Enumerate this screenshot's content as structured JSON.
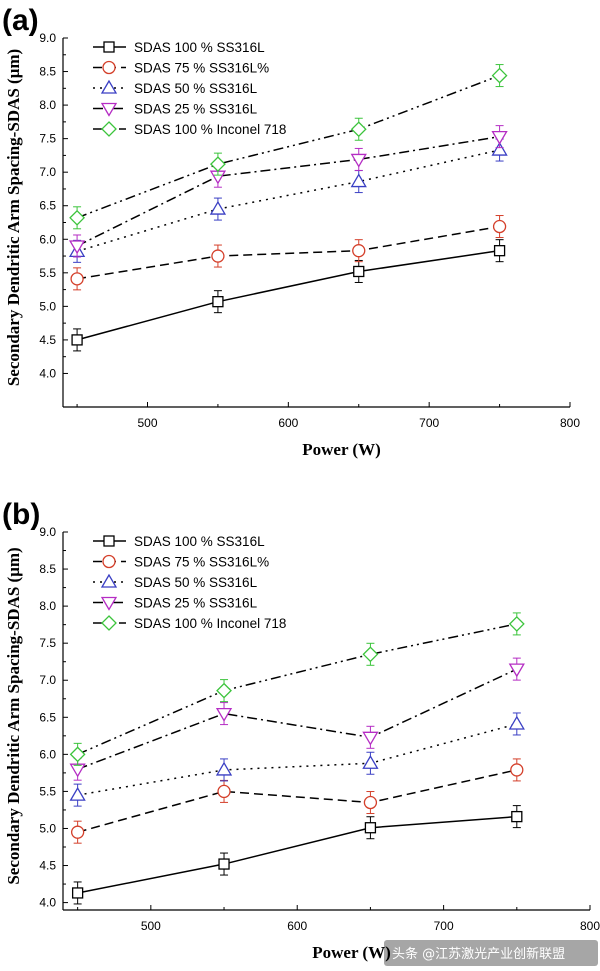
{
  "watermark": "头条 @江苏激光产业创新联盟",
  "chart_data": [
    {
      "panel_label": "(a)",
      "type": "line",
      "xlabel": "Power (W)",
      "ylabel": "Secondary Dendritic Arm Spacing-SDAS (μm)",
      "xlim": [
        440,
        800
      ],
      "ylim": [
        3.5,
        9.0
      ],
      "xticks": [
        500,
        600,
        700,
        800
      ],
      "yticks": [
        4.0,
        4.5,
        5.0,
        5.5,
        6.0,
        6.5,
        7.0,
        7.5,
        8.0,
        8.5,
        9.0
      ],
      "x": [
        450,
        550,
        650,
        750
      ],
      "legend_position": "top-left",
      "series": [
        {
          "name": "SDAS 100 % SS316L",
          "values": [
            4.5,
            5.07,
            5.52,
            5.83
          ],
          "color": "#000000",
          "marker": "square",
          "dash": "solid"
        },
        {
          "name": "SDAS 75 % SS316L%",
          "values": [
            5.41,
            5.75,
            5.83,
            6.19
          ],
          "color": "#d43f2a",
          "marker": "circle",
          "dash": "dash"
        },
        {
          "name": "SDAS 50 % SS316L",
          "values": [
            5.82,
            6.45,
            6.86,
            7.33
          ],
          "color": "#3a3fc4",
          "marker": "triangle-up",
          "dash": "dot"
        },
        {
          "name": "SDAS 25 % SS316L",
          "values": [
            5.9,
            6.94,
            7.19,
            7.53
          ],
          "color": "#b52dc4",
          "marker": "triangle-down",
          "dash": "dashdot"
        },
        {
          "name": "SDAS 100 % Inconel 718",
          "values": [
            6.32,
            7.12,
            7.64,
            8.44
          ],
          "color": "#3cc43c",
          "marker": "diamond",
          "dash": "dashdotdot"
        }
      ]
    },
    {
      "panel_label": "(b)",
      "type": "line",
      "xlabel": "Power (W)",
      "ylabel": "Secondary Dendritic Arm Spacing-SDAS (μm)",
      "xlim": [
        440,
        800
      ],
      "ylim": [
        3.9,
        9.0
      ],
      "xticks": [
        500,
        600,
        700,
        800
      ],
      "yticks": [
        4.0,
        4.5,
        5.0,
        5.5,
        6.0,
        6.5,
        7.0,
        7.5,
        8.0,
        8.5,
        9.0
      ],
      "x": [
        450,
        550,
        650,
        750
      ],
      "legend_position": "top-left",
      "series": [
        {
          "name": "SDAS 100 % SS316L",
          "values": [
            4.13,
            4.52,
            5.01,
            5.16
          ],
          "color": "#000000",
          "marker": "square",
          "dash": "solid"
        },
        {
          "name": "SDAS 75 % SS316L%",
          "values": [
            4.95,
            5.5,
            5.35,
            5.79
          ],
          "color": "#d43f2a",
          "marker": "circle",
          "dash": "dash"
        },
        {
          "name": "SDAS 50 % SS316L",
          "values": [
            5.45,
            5.79,
            5.88,
            6.41
          ],
          "color": "#3a3fc4",
          "marker": "triangle-up",
          "dash": "dot"
        },
        {
          "name": "SDAS 25 % SS316L",
          "values": [
            5.8,
            6.55,
            6.23,
            7.15
          ],
          "color": "#b52dc4",
          "marker": "triangle-down",
          "dash": "dashdot"
        },
        {
          "name": "SDAS 100 % Inconel 718",
          "values": [
            6.0,
            6.86,
            7.35,
            7.76
          ],
          "color": "#3cc43c",
          "marker": "diamond",
          "dash": "dashdotdot"
        }
      ]
    }
  ]
}
